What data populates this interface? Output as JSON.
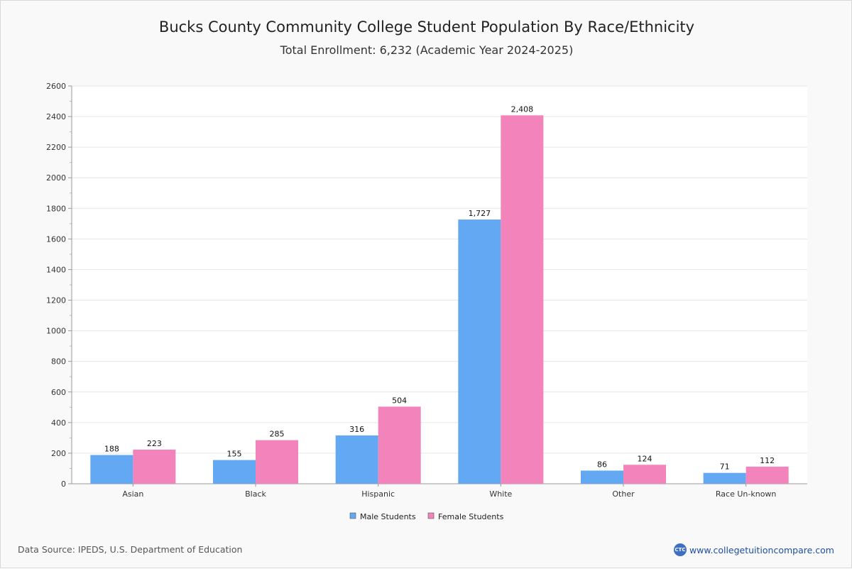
{
  "title": "Bucks County Community College Student Population By Race/Ethnicity",
  "subtitle": "Total Enrollment: 6,232 (Academic Year 2024-2025)",
  "footer": {
    "source": "Data Source: IPEDS, U.S. Department of Education",
    "brand": "www.collegetuitioncompare.com",
    "brand_logo": "CTC"
  },
  "chart_data": {
    "type": "bar",
    "categories": [
      "Asian",
      "Black",
      "Hispanic",
      "White",
      "Other",
      "Race Un-known"
    ],
    "series": [
      {
        "name": "Male Students",
        "color": "#62a8f3",
        "values": [
          188,
          155,
          316,
          1727,
          86,
          71
        ],
        "labels": [
          "188",
          "155",
          "316",
          "1,727",
          "86",
          "71"
        ]
      },
      {
        "name": "Female Students",
        "color": "#f383bb",
        "values": [
          223,
          285,
          504,
          2408,
          124,
          112
        ],
        "labels": [
          "223",
          "285",
          "504",
          "2,408",
          "124",
          "112"
        ]
      }
    ],
    "ylim": [
      0,
      2600
    ],
    "yticks": [
      0,
      200,
      400,
      600,
      800,
      1000,
      1200,
      1400,
      1600,
      1800,
      2000,
      2200,
      2400,
      2600
    ],
    "grid": true,
    "legend": "bottom-center"
  }
}
